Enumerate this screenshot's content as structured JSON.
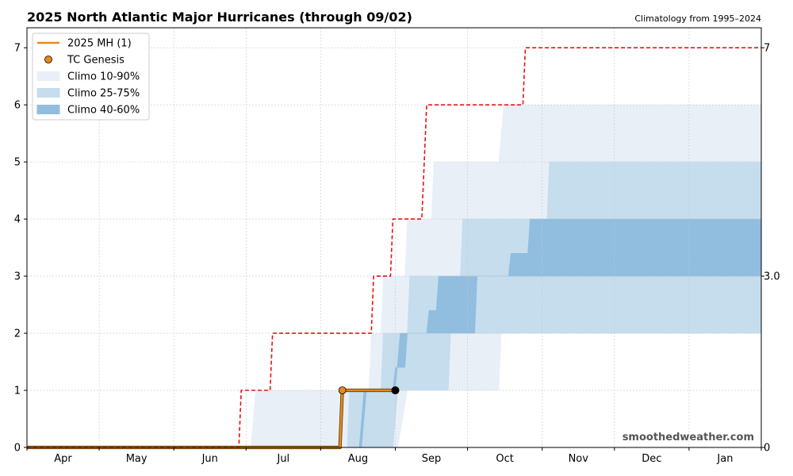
{
  "chart_data": {
    "type": "line",
    "title": "2025 North Atlantic Major Hurricanes (through 09/02)",
    "subtitle": "Climatology from 1995–2024",
    "watermark": "smoothedweather.com",
    "x_axis": {
      "domain_days": [
        0,
        305
      ],
      "tick_labels": [
        "Apr",
        "May",
        "Jun",
        "Jul",
        "Aug",
        "Sep",
        "Oct",
        "Nov",
        "Dec",
        "Jan"
      ],
      "month_boundaries_days": [
        0,
        30,
        61,
        91,
        122,
        153,
        183,
        214,
        244,
        275,
        305
      ],
      "grid": true
    },
    "y_axis": {
      "range": [
        0,
        7.35
      ],
      "ticks": [
        "0",
        "1",
        "2",
        "3",
        "4",
        "5",
        "6",
        "7"
      ],
      "grid": true
    },
    "right_axis_labels": [
      {
        "value": 7,
        "label": "7"
      },
      {
        "value": 3,
        "label": "3.0"
      },
      {
        "value": 0,
        "label": "0"
      }
    ],
    "legend": {
      "placement": "upper-left",
      "entries": [
        {
          "label": "2025 MH (1)",
          "kind": "line",
          "color": "#e8891a"
        },
        {
          "label": "TC Genesis",
          "kind": "marker",
          "color": "#e8891a"
        },
        {
          "label": "Climo 10-90%",
          "kind": "band",
          "color": "#e8eff7"
        },
        {
          "label": "Climo 25-75%",
          "kind": "band",
          "color": "#c5dded"
        },
        {
          "label": "Climo 40-60%",
          "kind": "band",
          "color": "#91bddf"
        }
      ]
    },
    "series": [
      {
        "name": "2025 MH (1)",
        "color": "#e8891a",
        "steps": [
          [
            0,
            0
          ],
          [
            130,
            0
          ],
          [
            131,
            1
          ],
          [
            153,
            1
          ]
        ],
        "genesis_point": [
          131,
          1
        ],
        "current_point": [
          153,
          1
        ]
      },
      {
        "style": "dashed",
        "color": "#ee1111",
        "steps": [
          [
            0,
            0
          ],
          [
            88,
            0
          ],
          [
            89,
            1
          ],
          [
            101,
            1
          ],
          [
            102,
            2
          ],
          [
            143,
            2
          ],
          [
            144,
            3
          ],
          [
            151,
            3
          ],
          [
            152,
            4
          ],
          [
            164,
            4
          ],
          [
            165,
            5
          ],
          [
            166,
            6
          ],
          [
            206,
            6
          ],
          [
            207,
            7
          ],
          [
            305,
            7
          ]
        ]
      }
    ],
    "bands": [
      {
        "name": "Climo 10-90%",
        "color": "#e8eff7",
        "lower": [
          [
            0,
            0
          ],
          [
            154,
            0
          ],
          [
            158,
            1
          ],
          [
            196,
            1
          ],
          [
            197,
            2
          ],
          [
            305,
            2
          ]
        ],
        "upper": [
          [
            0,
            0
          ],
          [
            93,
            0
          ],
          [
            95,
            1
          ],
          [
            142,
            1
          ],
          [
            143,
            2
          ],
          [
            147,
            2
          ],
          [
            148,
            3
          ],
          [
            157,
            3
          ],
          [
            158,
            4
          ],
          [
            168,
            4
          ],
          [
            169,
            5
          ],
          [
            196,
            5
          ],
          [
            198,
            6
          ],
          [
            305,
            6
          ]
        ]
      },
      {
        "name": "Climo 25-75%",
        "color": "#c5dded",
        "lower": [
          [
            0,
            0
          ],
          [
            152,
            0
          ],
          [
            154,
            1
          ],
          [
            175,
            1
          ],
          [
            176,
            2
          ],
          [
            305,
            2
          ]
        ],
        "upper": [
          [
            0,
            0
          ],
          [
            133,
            0
          ],
          [
            134,
            1
          ],
          [
            147,
            1
          ],
          [
            148,
            2
          ],
          [
            158,
            2
          ],
          [
            159,
            3
          ],
          [
            180,
            3
          ],
          [
            181,
            4
          ],
          [
            216,
            4
          ],
          [
            217,
            5
          ],
          [
            305,
            5
          ]
        ]
      },
      {
        "name": "Climo 40-60%",
        "color": "#91bddf",
        "lower": [
          [
            0,
            0
          ],
          [
            139,
            0
          ],
          [
            141,
            1
          ],
          [
            153,
            1
          ],
          [
            155,
            2
          ],
          [
            186,
            2
          ],
          [
            187,
            3
          ],
          [
            305,
            3
          ]
        ],
        "upper": [
          [
            0,
            0
          ],
          [
            138,
            0
          ],
          [
            140,
            1
          ],
          [
            152,
            1
          ],
          [
            153,
            1.4
          ],
          [
            157,
            1.4
          ],
          [
            158,
            2
          ],
          [
            166,
            2
          ],
          [
            167,
            2.4
          ],
          [
            170,
            2.4
          ],
          [
            171,
            3
          ],
          [
            200,
            3
          ],
          [
            201,
            3.4
          ],
          [
            208,
            3.4
          ],
          [
            209,
            4
          ],
          [
            305,
            4
          ]
        ]
      }
    ]
  }
}
